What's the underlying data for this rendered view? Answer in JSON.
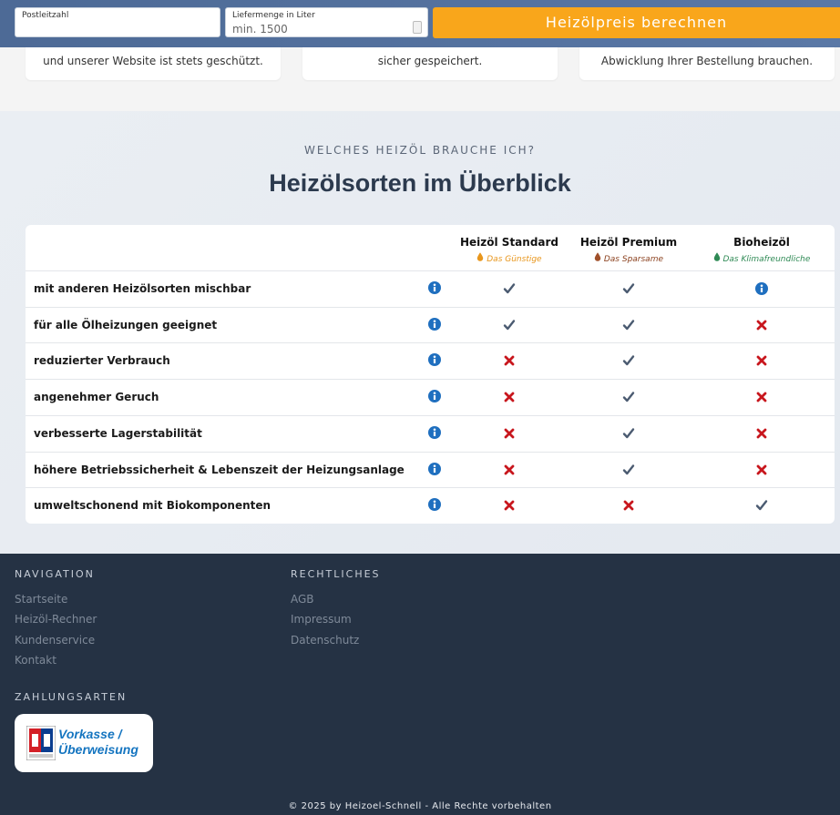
{
  "topbar": {
    "postcode_label": "Postleitzahl",
    "quantity_label": "Liefermenge in Liter",
    "quantity_placeholder": "min. 1500",
    "button": "Heizölpreis berechnen"
  },
  "cards": [
    "und unserer Website ist stets geschützt.",
    "sicher gespeichert.",
    "Abwicklung Ihrer Bestellung brauchen."
  ],
  "comparison": {
    "eyebrow": "WELCHES HEIZÖL BRAUCHE ICH?",
    "title": "Heizölsorten im Überblick",
    "columns": [
      {
        "name": "Heizöl Standard",
        "tagline": "Das Günstige"
      },
      {
        "name": "Heizöl Premium",
        "tagline": "Das Sparsame"
      },
      {
        "name": "Bioheizöl",
        "tagline": "Das Klimafreundliche"
      }
    ],
    "rows": [
      "mit anderen Heizölsorten mischbar",
      "für alle Ölheizungen geeignet",
      "reduzierter Verbrauch",
      "angenehmer Geruch",
      "verbesserte Lagerstabilität",
      "höhere Betriebssicherheit & Lebenszeit der Heizungsanlage",
      "umweltschonend mit Biokomponenten"
    ]
  },
  "footer": {
    "navigation": {
      "heading": "NAVIGATION",
      "links": [
        "Startseite",
        "Heizöl-Rechner",
        "Kundenservice",
        "Kontakt"
      ]
    },
    "legal": {
      "heading": "RECHTLICHES",
      "links": [
        "AGB",
        "Impressum",
        "Datenschutz"
      ]
    },
    "payment": {
      "heading": "ZAHLUNGSARTEN",
      "method": "Vorkasse / Überweisung"
    },
    "copyright": "© 2025 by Heizoel-Schnell - Alle Rechte vorbehalten"
  }
}
